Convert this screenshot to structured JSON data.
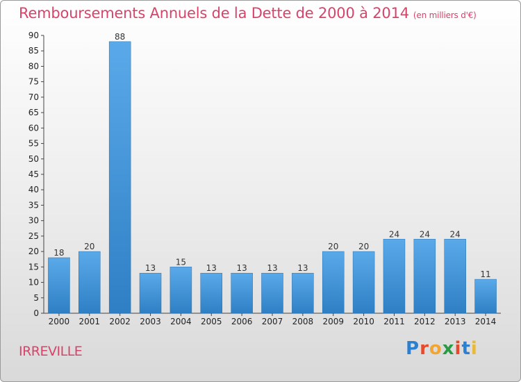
{
  "header": {
    "title": "Remboursements Annuels de la Dette de 2000 à 2014",
    "subtitle": "(en milliers d'€)"
  },
  "commune": "IRREVILLE",
  "logo": {
    "text": "Proxiti",
    "letters": [
      {
        "ch": "P",
        "color": "#2d7fd0"
      },
      {
        "ch": "r",
        "color": "#e54a2c"
      },
      {
        "ch": "o",
        "color": "#f2a531"
      },
      {
        "ch": "x",
        "color": "#2b9a44"
      },
      {
        "ch": "i",
        "color": "#e54a2c"
      },
      {
        "ch": "t",
        "color": "#2d7fd0"
      },
      {
        "ch": "i",
        "color": "#e8b93a"
      }
    ]
  },
  "colors": {
    "title": "#d8436a",
    "bar_light": "#5aaaea",
    "bar_dark": "#2e7fc4"
  },
  "chart_data": {
    "type": "bar",
    "categories": [
      "2000",
      "2001",
      "2002",
      "2003",
      "2004",
      "2005",
      "2006",
      "2007",
      "2008",
      "2009",
      "2010",
      "2011",
      "2012",
      "2013",
      "2014"
    ],
    "values": [
      18,
      20,
      88,
      13,
      15,
      13,
      13,
      13,
      13,
      20,
      20,
      24,
      24,
      24,
      11
    ],
    "ylim": [
      0,
      90
    ],
    "yticks": [
      0,
      5,
      10,
      15,
      20,
      25,
      30,
      35,
      40,
      45,
      50,
      55,
      60,
      65,
      70,
      75,
      80,
      85,
      90
    ],
    "grid": false,
    "show_data_labels": true
  }
}
